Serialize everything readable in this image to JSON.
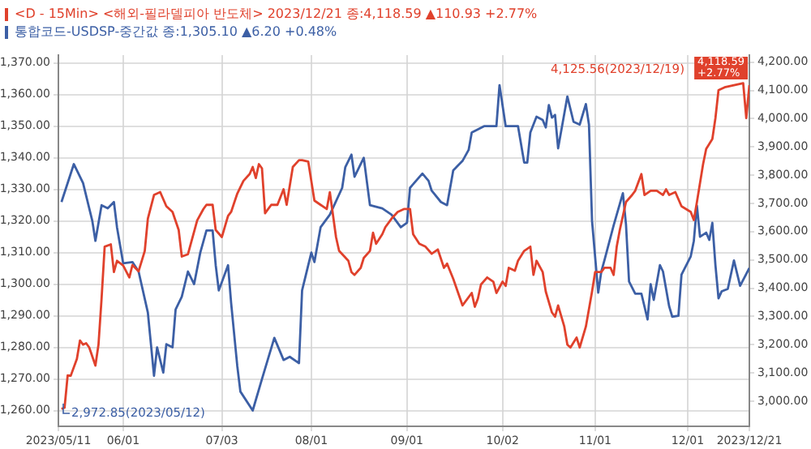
{
  "chart_data": {
    "type": "line",
    "xlim": [
      "2023-05-11",
      "2023-12-21"
    ],
    "xticks": [
      {
        "value": "2023-05-11",
        "label": "2023/05/11"
      },
      {
        "value": "2023-06-01",
        "label": "06/01"
      },
      {
        "value": "2023-07-03",
        "label": "07/03"
      },
      {
        "value": "2023-08-01",
        "label": "08/01"
      },
      {
        "value": "2023-09-01",
        "label": "09/01"
      },
      {
        "value": "2023-10-02",
        "label": "10/02"
      },
      {
        "value": "2023-11-01",
        "label": "11/01"
      },
      {
        "value": "2023-12-01",
        "label": "12/01"
      },
      {
        "value": "2023-12-21",
        "label": "2023/12/21"
      }
    ],
    "ylim": [
      1255,
      1372.5
    ],
    "yticks": [
      {
        "value": 1260,
        "label": "1,260.00"
      },
      {
        "value": 1270,
        "label": "1,270.00"
      },
      {
        "value": 1280,
        "label": "1,280.00"
      },
      {
        "value": 1290,
        "label": "1,290.00"
      },
      {
        "value": 1300,
        "label": "1,300.00"
      },
      {
        "value": 1310,
        "label": "1,310.00"
      },
      {
        "value": 1320,
        "label": "1,320.00"
      },
      {
        "value": 1330,
        "label": "1,330.00"
      },
      {
        "value": 1340,
        "label": "1,340.00"
      },
      {
        "value": 1350,
        "label": "1,350.00"
      },
      {
        "value": 1360,
        "label": "1,360.00"
      },
      {
        "value": 1370,
        "label": "1,370.00"
      }
    ],
    "y2lim": [
      2911,
      4225
    ],
    "y2ticks": [
      {
        "value": 3000,
        "label": "3,000.00"
      },
      {
        "value": 3100,
        "label": "3,100.00"
      },
      {
        "value": 3200,
        "label": "3,200.00"
      },
      {
        "value": 3300,
        "label": "3,300.00"
      },
      {
        "value": 3400,
        "label": "3,400.00"
      },
      {
        "value": 3500,
        "label": "3,500.00"
      },
      {
        "value": 3600,
        "label": "3,600.00"
      },
      {
        "value": 3700,
        "label": "3,700.00"
      },
      {
        "value": 3800,
        "label": "3,800.00"
      },
      {
        "value": 3900,
        "label": "3,900.00"
      },
      {
        "value": 4000,
        "label": "4,000.00"
      },
      {
        "value": 4100,
        "label": "4,100.00"
      },
      {
        "value": 4200,
        "label": "4,200.00"
      }
    ],
    "grid": true,
    "legend": "top left",
    "marker": "none",
    "line_style": "solid",
    "series": [
      {
        "name": "<D - 15Min> <해외-필라델피아 반도체> 2023/12/21 종:4,118.59 ▲110.93 +2.77%",
        "color": "#e0412c",
        "axis": "y2",
        "x": [
          "2023-05-12",
          "2023-05-13",
          "2023-05-14",
          "2023-05-15",
          "2023-05-17",
          "2023-05-18",
          "2023-05-19",
          "2023-05-20",
          "2023-05-21",
          "2023-05-23",
          "2023-05-24",
          "2023-05-25",
          "2023-05-26",
          "2023-05-28",
          "2023-05-29",
          "2023-05-30",
          "2023-06-01",
          "2023-06-03",
          "2023-06-04",
          "2023-06-06",
          "2023-06-08",
          "2023-06-09",
          "2023-06-11",
          "2023-06-13",
          "2023-06-15",
          "2023-06-17",
          "2023-06-19",
          "2023-06-20",
          "2023-06-22",
          "2023-06-25",
          "2023-06-27",
          "2023-06-28",
          "2023-06-30",
          "2023-07-01",
          "2023-07-03",
          "2023-07-05",
          "2023-07-06",
          "2023-07-08",
          "2023-07-10",
          "2023-07-12",
          "2023-07-13",
          "2023-07-14",
          "2023-07-15",
          "2023-07-16",
          "2023-07-17",
          "2023-07-19",
          "2023-07-21",
          "2023-07-23",
          "2023-07-24",
          "2023-07-26",
          "2023-07-28",
          "2023-07-29",
          "2023-07-31",
          "2023-08-02",
          "2023-08-04",
          "2023-08-06",
          "2023-08-07",
          "2023-08-09",
          "2023-08-10",
          "2023-08-13",
          "2023-08-14",
          "2023-08-15",
          "2023-08-17",
          "2023-08-18",
          "2023-08-20",
          "2023-08-21",
          "2023-08-22",
          "2023-08-24",
          "2023-08-25",
          "2023-08-27",
          "2023-08-29",
          "2023-08-31",
          "2023-09-02",
          "2023-09-03",
          "2023-09-05",
          "2023-09-07",
          "2023-09-09",
          "2023-09-11",
          "2023-09-13",
          "2023-09-14",
          "2023-09-16",
          "2023-09-19",
          "2023-09-22",
          "2023-09-23",
          "2023-09-24",
          "2023-09-25",
          "2023-09-27",
          "2023-09-29",
          "2023-09-30",
          "2023-10-02",
          "2023-10-03",
          "2023-10-04",
          "2023-10-06",
          "2023-10-07",
          "2023-10-09",
          "2023-10-11",
          "2023-10-12",
          "2023-10-13",
          "2023-10-15",
          "2023-10-16",
          "2023-10-18",
          "2023-10-19",
          "2023-10-20",
          "2023-10-22",
          "2023-10-23",
          "2023-10-24",
          "2023-10-26",
          "2023-10-27",
          "2023-10-29",
          "2023-10-31",
          "2023-11-01",
          "2023-11-03",
          "2023-11-04",
          "2023-11-06",
          "2023-11-07",
          "2023-11-08",
          "2023-11-09",
          "2023-11-11",
          "2023-11-13",
          "2023-11-14",
          "2023-11-16",
          "2023-11-17",
          "2023-11-19",
          "2023-11-21",
          "2023-11-23",
          "2023-11-24",
          "2023-11-25",
          "2023-11-27",
          "2023-11-28",
          "2023-11-29",
          "2023-12-02",
          "2023-12-03",
          "2023-12-04",
          "2023-12-06",
          "2023-12-07",
          "2023-12-09",
          "2023-12-10",
          "2023-12-11",
          "2023-12-13",
          "2023-12-19",
          "2023-12-20",
          "2023-12-21"
        ],
        "values": [
          2972.85,
          2977,
          3091,
          3090,
          3150,
          3215,
          3200,
          3205,
          3190,
          3126,
          3200,
          3363,
          3547,
          3555,
          3457,
          3497,
          3480,
          3438,
          3482,
          3460,
          3532,
          3646,
          3730,
          3740,
          3690,
          3670,
          3606,
          3512,
          3520,
          3640,
          3680,
          3695,
          3695,
          3606,
          3581,
          3656,
          3670,
          3735,
          3780,
          3804,
          3829,
          3790,
          3839,
          3824,
          3665,
          3695,
          3695,
          3750,
          3695,
          3829,
          3853,
          3853,
          3848,
          3710,
          3695,
          3680,
          3740,
          3581,
          3532,
          3497,
          3457,
          3447,
          3472,
          3507,
          3532,
          3596,
          3557,
          3591,
          3616,
          3646,
          3670,
          3680,
          3680,
          3591,
          3557,
          3547,
          3522,
          3537,
          3472,
          3487,
          3433,
          3339,
          3383,
          3334,
          3363,
          3413,
          3438,
          3423,
          3383,
          3423,
          3408,
          3472,
          3462,
          3497,
          3532,
          3547,
          3447,
          3497,
          3457,
          3388,
          3314,
          3299,
          3339,
          3264,
          3200,
          3190,
          3225,
          3190,
          3264,
          3388,
          3457,
          3457,
          3472,
          3472,
          3447,
          3547,
          3606,
          3705,
          3730,
          3745,
          3804,
          3730,
          3745,
          3745,
          3730,
          3750,
          3730,
          3740,
          3715,
          3690,
          3670,
          3641,
          3705,
          3839,
          3893,
          3928,
          4002,
          4101,
          4111,
          4125.56,
          4002,
          4118.59
        ]
      },
      {
        "name": "통합코드-USDSP-중간값 종:1,305.10 ▲6.20 +0.48%",
        "color": "#3c5fa5",
        "x": [
          "2023-05-12",
          "2023-05-16",
          "2023-05-19",
          "2023-05-22",
          "2023-05-23",
          "2023-05-25",
          "2023-05-27",
          "2023-05-29",
          "2023-05-30",
          "2023-06-01",
          "2023-06-04",
          "2023-06-06",
          "2023-06-09",
          "2023-06-11",
          "2023-06-12",
          "2023-06-14",
          "2023-06-15",
          "2023-06-17",
          "2023-06-18",
          "2023-06-20",
          "2023-06-22",
          "2023-06-24",
          "2023-06-26",
          "2023-06-28",
          "2023-06-30",
          "2023-07-01",
          "2023-07-02",
          "2023-07-05",
          "2023-07-06",
          "2023-07-08",
          "2023-07-09",
          "2023-07-13",
          "2023-07-16",
          "2023-07-20",
          "2023-07-23",
          "2023-07-25",
          "2023-07-28",
          "2023-07-29",
          "2023-08-01",
          "2023-08-02",
          "2023-08-04",
          "2023-08-07",
          "2023-08-11",
          "2023-08-12",
          "2023-08-14",
          "2023-08-15",
          "2023-08-18",
          "2023-08-20",
          "2023-08-24",
          "2023-08-27",
          "2023-08-30",
          "2023-09-01",
          "2023-09-02",
          "2023-09-06",
          "2023-09-08",
          "2023-09-09",
          "2023-09-12",
          "2023-09-14",
          "2023-09-16",
          "2023-09-19",
          "2023-09-21",
          "2023-09-22",
          "2023-09-26",
          "2023-09-30",
          "2023-10-01",
          "2023-10-03",
          "2023-10-07",
          "2023-10-09",
          "2023-10-10",
          "2023-10-11",
          "2023-10-13",
          "2023-10-15",
          "2023-10-16",
          "2023-10-17",
          "2023-10-18",
          "2023-10-19",
          "2023-10-20",
          "2023-10-23",
          "2023-10-25",
          "2023-10-27",
          "2023-10-29",
          "2023-10-30",
          "2023-10-31",
          "2023-11-02",
          "2023-11-03",
          "2023-11-04",
          "2023-11-07",
          "2023-11-10",
          "2023-11-11",
          "2023-11-12",
          "2023-11-14",
          "2023-11-16",
          "2023-11-18",
          "2023-11-19",
          "2023-11-20",
          "2023-11-22",
          "2023-11-23",
          "2023-11-25",
          "2023-11-26",
          "2023-11-28",
          "2023-11-29",
          "2023-12-02",
          "2023-12-03",
          "2023-12-04",
          "2023-12-05",
          "2023-12-07",
          "2023-12-08",
          "2023-12-09",
          "2023-12-10",
          "2023-12-11",
          "2023-12-12",
          "2023-12-14",
          "2023-12-16",
          "2023-12-18",
          "2023-12-21"
        ],
        "values": [
          1326,
          1338,
          1332,
          1320,
          1313.7,
          1325,
          1324,
          1326,
          1318,
          1306.6,
          1307,
          1304,
          1291,
          1271,
          1280,
          1272,
          1281,
          1280,
          1292,
          1296,
          1304,
          1300,
          1310,
          1317,
          1317,
          1306,
          1298,
          1306,
          1294,
          1274,
          1266,
          1260,
          1270,
          1283,
          1276,
          1277,
          1275,
          1298,
          1310,
          1307,
          1318,
          1322,
          1330.5,
          1337,
          1341,
          1334,
          1340,
          1325,
          1324,
          1322,
          1318,
          1319.4,
          1330.5,
          1335,
          1332.7,
          1329.6,
          1326,
          1325,
          1336,
          1339,
          1342.5,
          1348,
          1350,
          1350,
          1363,
          1350,
          1350,
          1338.5,
          1338.5,
          1348,
          1353,
          1352,
          1349.6,
          1356.7,
          1352.7,
          1353.6,
          1343,
          1359.4,
          1351.4,
          1350.5,
          1357,
          1350.5,
          1320,
          1297.3,
          1304,
          1307.5,
          1318.6,
          1328.8,
          1319,
          1300.8,
          1297,
          1297,
          1288.8,
          1300,
          1295,
          1306,
          1304,
          1293,
          1289.7,
          1290,
          1303,
          1308.8,
          1313.7,
          1324.8,
          1315,
          1316.3,
          1314,
          1319.4,
          1306,
          1295.5,
          1297.7,
          1298.5,
          1307.5,
          1299.5,
          1305.1
        ]
      }
    ],
    "annotations": [
      "4,125.56(2023/12/19)",
      "2,972.85(2023/05/12)",
      "4,118.59 +2.77%"
    ]
  }
}
